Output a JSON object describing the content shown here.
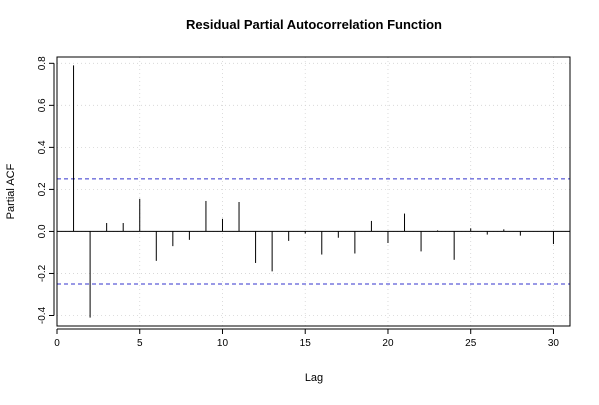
{
  "chart_data": {
    "type": "bar",
    "title": "Residual Partial Autocorrelation Function",
    "xlabel": "Lag",
    "ylabel": "Partial ACF",
    "xlim": [
      0,
      31
    ],
    "ylim": [
      -0.45,
      0.83
    ],
    "x_ticks": [
      0,
      5,
      10,
      15,
      20,
      25,
      30
    ],
    "y_ticks": [
      -0.4,
      -0.2,
      0.0,
      0.2,
      0.4,
      0.6,
      0.8
    ],
    "x_tick_labels": [
      "0",
      "5",
      "10",
      "15",
      "20",
      "25",
      "30"
    ],
    "y_tick_labels": [
      "-0.4",
      "-0.2",
      "0.0",
      "0.2",
      "0.4",
      "0.6",
      "0.8"
    ],
    "grid": true,
    "confidence_band": [
      -0.25,
      0.25
    ],
    "confidence_color": "#3333cc",
    "lags": [
      1,
      2,
      3,
      4,
      5,
      6,
      7,
      8,
      9,
      10,
      11,
      12,
      13,
      14,
      15,
      16,
      17,
      18,
      19,
      20,
      21,
      22,
      23,
      24,
      25,
      26,
      27,
      28,
      29,
      30
    ],
    "values": [
      0.79,
      -0.41,
      0.04,
      0.04,
      0.155,
      -0.14,
      -0.07,
      -0.04,
      0.145,
      0.06,
      0.14,
      -0.15,
      -0.19,
      -0.045,
      -0.01,
      -0.11,
      -0.03,
      -0.105,
      0.05,
      -0.055,
      0.085,
      -0.095,
      0.005,
      -0.135,
      0.015,
      -0.015,
      0.01,
      -0.02,
      0.0,
      -0.06
    ]
  }
}
